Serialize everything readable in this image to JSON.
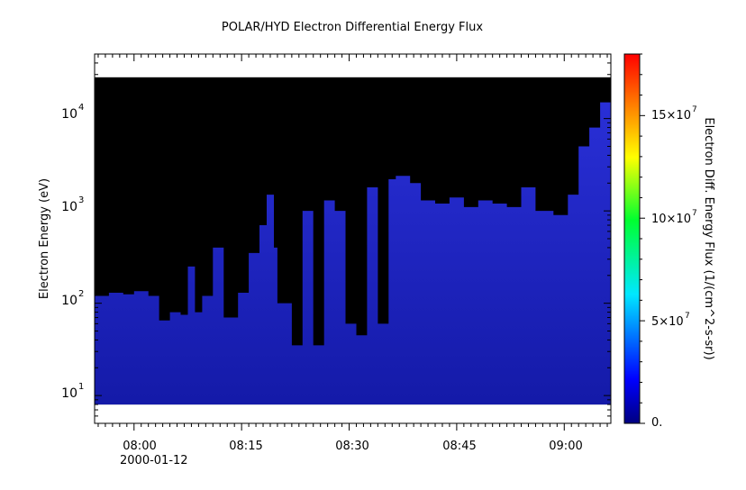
{
  "chart_data": {
    "type": "heatmap",
    "title": "POLAR/HYD  Electron Differential Energy Flux",
    "xlabel": "",
    "ylabel": "Electron Energy (eV)",
    "x_date_label": "2000-01-12",
    "x_ticks": [
      "08:00",
      "08:15",
      "08:30",
      "08:45",
      "09:00"
    ],
    "xlim": [
      "07:54:30",
      "09:06:30"
    ],
    "ylim": [
      5,
      50000
    ],
    "y_scale": "log",
    "y_ticks": [
      {
        "base": "10",
        "exp": "1"
      },
      {
        "base": "10",
        "exp": "2"
      },
      {
        "base": "10",
        "exp": "3"
      },
      {
        "base": "10",
        "exp": "4"
      }
    ],
    "energy_range": [
      8,
      28000
    ],
    "colorbar": {
      "label": "Electron Diff. Energy Flux (1/(cm^2-s-sr))",
      "range": [
        0,
        180000000
      ],
      "colormap": "rainbow",
      "ticks": [
        {
          "mant": "0.",
          "exp": ""
        },
        {
          "mant": "5×10",
          "exp": "7"
        },
        {
          "mant": "10×10",
          "exp": "7"
        },
        {
          "mant": "15×10",
          "exp": "7"
        }
      ]
    },
    "background_color": "#000000",
    "dominant_flux_color": "#1a1fd0",
    "upper_energy_envelope": [
      {
        "t": "07:54:30",
        "e": 120
      },
      {
        "t": "07:56:30",
        "e": 130
      },
      {
        "t": "07:58:30",
        "e": 125
      },
      {
        "t": "08:00:00",
        "e": 135
      },
      {
        "t": "08:02:00",
        "e": 120
      },
      {
        "t": "08:03:30",
        "e": 65
      },
      {
        "t": "08:05:00",
        "e": 80
      },
      {
        "t": "08:06:30",
        "e": 75
      },
      {
        "t": "08:07:30",
        "e": 250
      },
      {
        "t": "08:08:30",
        "e": 80
      },
      {
        "t": "08:09:30",
        "e": 120
      },
      {
        "t": "08:11:00",
        "e": 400
      },
      {
        "t": "08:12:30",
        "e": 70
      },
      {
        "t": "08:14:30",
        "e": 130
      },
      {
        "t": "08:16:00",
        "e": 350
      },
      {
        "t": "08:17:30",
        "e": 700
      },
      {
        "t": "08:18:30",
        "e": 1500
      },
      {
        "t": "08:19:30",
        "e": 400
      },
      {
        "t": "08:20:00",
        "e": 100
      },
      {
        "t": "08:22:00",
        "e": 35
      },
      {
        "t": "08:23:30",
        "e": 1000
      },
      {
        "t": "08:25:00",
        "e": 35
      },
      {
        "t": "08:26:30",
        "e": 1300
      },
      {
        "t": "08:28:00",
        "e": 1000
      },
      {
        "t": "08:29:30",
        "e": 60
      },
      {
        "t": "08:31:00",
        "e": 45
      },
      {
        "t": "08:32:30",
        "e": 1800
      },
      {
        "t": "08:34:00",
        "e": 60
      },
      {
        "t": "08:35:30",
        "e": 2200
      },
      {
        "t": "08:36:30",
        "e": 2400
      },
      {
        "t": "08:38:30",
        "e": 2000
      },
      {
        "t": "08:40:00",
        "e": 1300
      },
      {
        "t": "08:42:00",
        "e": 1200
      },
      {
        "t": "08:44:00",
        "e": 1400
      },
      {
        "t": "08:46:00",
        "e": 1100
      },
      {
        "t": "08:48:00",
        "e": 1300
      },
      {
        "t": "08:50:00",
        "e": 1200
      },
      {
        "t": "08:52:00",
        "e": 1100
      },
      {
        "t": "08:54:00",
        "e": 1800
      },
      {
        "t": "08:56:00",
        "e": 1000
      },
      {
        "t": "08:58:30",
        "e": 900
      },
      {
        "t": "09:00:30",
        "e": 1500
      },
      {
        "t": "09:02:00",
        "e": 5000
      },
      {
        "t": "09:03:30",
        "e": 8000
      },
      {
        "t": "09:05:00",
        "e": 15000
      },
      {
        "t": "09:06:30",
        "e": 20000
      }
    ]
  }
}
